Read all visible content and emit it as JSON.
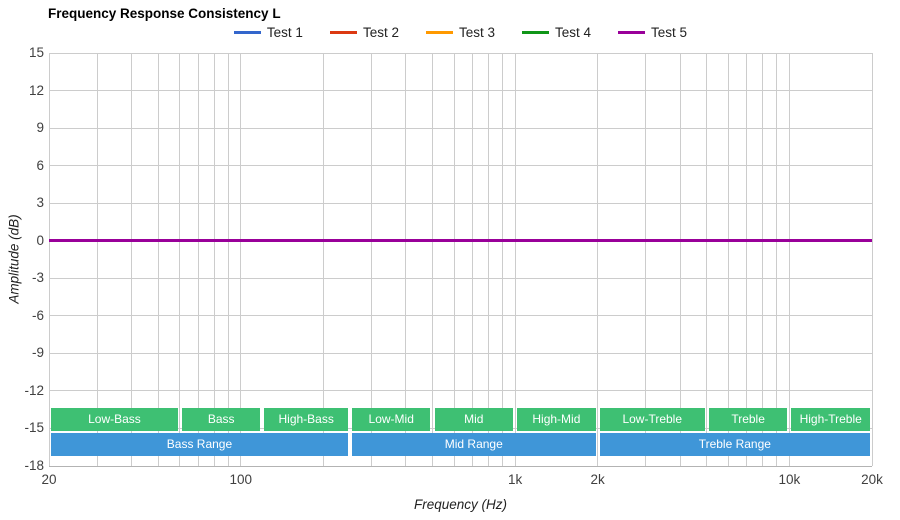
{
  "chart_data": {
    "type": "line",
    "title": "Frequency Response Consistency L",
    "xlabel": "Frequency (Hz)",
    "ylabel": "Amplitude (dB)",
    "x_scale": "log",
    "xlim": [
      20,
      20000
    ],
    "ylim": [
      -18,
      15
    ],
    "grid": "on",
    "legend_position": "top",
    "x_tick_values": [
      20,
      100,
      1000,
      2000,
      10000,
      20000
    ],
    "x_tick_labels": [
      "20",
      "100",
      "1k",
      "2k",
      "10k",
      "20k"
    ],
    "y_ticks": [
      15,
      12,
      9,
      6,
      3,
      0,
      -3,
      -6,
      -9,
      -12,
      -15,
      -18
    ],
    "series": [
      {
        "name": "Test 1",
        "color": "#3366cc",
        "x": [
          20,
          20000
        ],
        "y": [
          0,
          0
        ]
      },
      {
        "name": "Test 2",
        "color": "#dc3912",
        "x": [
          20,
          20000
        ],
        "y": [
          0,
          0
        ]
      },
      {
        "name": "Test 3",
        "color": "#ff9900",
        "x": [
          20,
          20000
        ],
        "y": [
          0,
          0
        ]
      },
      {
        "name": "Test 4",
        "color": "#109618",
        "x": [
          20,
          20000
        ],
        "y": [
          0,
          0
        ]
      },
      {
        "name": "Test 5",
        "color": "#990099",
        "x": [
          20,
          20000
        ],
        "y": [
          0,
          0
        ]
      }
    ],
    "annotations": {
      "sub_band_color": "#3ec073",
      "range_band_color": "#3f96d8",
      "band_text_color": "#ffffff",
      "sub_bands": [
        {
          "label": "Low-Bass",
          "from": 20,
          "to": 60
        },
        {
          "label": "Bass",
          "from": 60,
          "to": 120
        },
        {
          "label": "High-Bass",
          "from": 120,
          "to": 250
        },
        {
          "label": "Low-Mid",
          "from": 250,
          "to": 500
        },
        {
          "label": "Mid",
          "from": 500,
          "to": 1000
        },
        {
          "label": "High-Mid",
          "from": 1000,
          "to": 2000
        },
        {
          "label": "Low-Treble",
          "from": 2000,
          "to": 5000
        },
        {
          "label": "Treble",
          "from": 5000,
          "to": 10000
        },
        {
          "label": "High-Treble",
          "from": 10000,
          "to": 20000
        }
      ],
      "ranges": [
        {
          "label": "Bass Range",
          "from": 20,
          "to": 250
        },
        {
          "label": "Mid Range",
          "from": 250,
          "to": 2000
        },
        {
          "label": "Treble Range",
          "from": 2000,
          "to": 20000
        }
      ]
    },
    "grid_color": "#cccccc"
  }
}
